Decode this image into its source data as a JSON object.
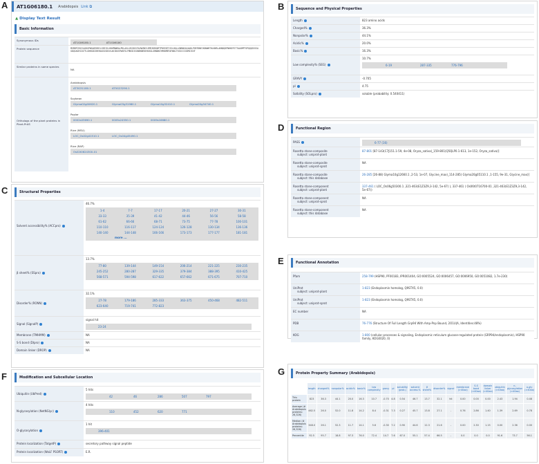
{
  "panels": {
    "a": "A",
    "b": "B",
    "c": "C",
    "d": "D",
    "e": "E",
    "f": "F",
    "g": "G"
  },
  "title": {
    "gene": "AT1G06180.1",
    "species": "Arabidopsis",
    "link": "Link"
  },
  "display_text": "Display Text Result",
  "basic": {
    "heading": "Basic Information",
    "syn_label": "Synonymous IDs",
    "syn": [
      "AT1G06180.1",
      "AT1G06180"
    ],
    "seq_label": "Protein sequence",
    "seq": "MSRRPCEKIGLKKGPWSAEEDRILINYISLHGHPNWRALPKLAGLLRCGKSCRLRWINYLRPDIKRGNFTPHEEDTIISLHQLLGNRWSAIAAKLPGRTDNEIKNVWHTHLKKRLAKNDQSPNHKEFSTTAAGMPTSPQQQSSSSAGDQIAGESIATTLGHHGIDIHEHAGSISDSVLAEIDGSFWSEVLFMDCDISGNEKNEKEHGSGLGRNDKGYMHDMEFAFWDLTSSSCCIGSMSISSF",
    "similar_label": "Similar proteins in same species",
    "similar": "NA",
    "orth_label": "Orthologs of the plant proteins in Plant-PrAS",
    "orth": [
      {
        "sp": "Arabidopsis",
        "ids": [
          "AT3G31180.1",
          "AT5G23290.1"
        ]
      },
      {
        "sp": "Soybean",
        "ids": [
          "Glyma02g00620.1",
          "Glyma03g31980.1",
          "Glyma10g32410.1",
          "Glyma20g34740.1"
        ]
      },
      {
        "sp": "Poplar",
        "ids": [
          "0002s03690.1",
          "0005s24550.1",
          "0009s16680.1"
        ]
      },
      {
        "sp": "Rice (MSU)",
        "ids": [
          "LOC_Os02g41510.1",
          "LOC_Os04g45490.1"
        ]
      },
      {
        "sp": "Rice (RAP)",
        "ids": [
          "Os02t0624300-01"
        ]
      }
    ]
  },
  "seqprops": {
    "heading": "Sequence and Physical Properties",
    "rows": [
      [
        "Length",
        "823 amino acids"
      ],
      [
        "Charged%",
        "36.3%"
      ],
      [
        "Nonpolar%",
        "44.1%"
      ],
      [
        "Acidic%",
        "20.0%"
      ],
      [
        "Basic%",
        "16.3%"
      ]
    ],
    "lc_label": "Low complexity% (SEG)",
    "lc_val": "10.7%",
    "lc_ranges": [
      "6-19",
      "287-335",
      "776-796"
    ],
    "rows2": [
      [
        "GRAVY",
        "-0.705"
      ],
      [
        "pI",
        "4.75"
      ],
      [
        "Solbility (SOLpro)",
        "soluble (probability: 0.540411)"
      ]
    ]
  },
  "structural": {
    "heading": "Structural Properties",
    "acc_label": "Solvent accessibility% (ACCpro)",
    "acc_val": "46.7%",
    "acc": [
      "1-4",
      "7-7",
      "17-17",
      "20-21",
      "27-27",
      "30-31",
      "33-33",
      "35-39",
      "41-42",
      "44-46",
      "56-56",
      "58-58",
      "61-62",
      "66-66",
      "68-71",
      "73-75",
      "77-78",
      "100-101",
      "110-110",
      "116-117",
      "124-124",
      "126-128",
      "130-134",
      "136-136",
      "140-140",
      "144-148",
      "166-166",
      "173-173",
      "177-177",
      "181-181"
    ],
    "more": "more ...",
    "beta_label": "β sheet% (SSpro)",
    "beta_val": "13.7%",
    "beta": [
      "77-80",
      "139-144",
      "149-154",
      "206-214",
      "221-225",
      "230-235",
      "245-252",
      "280-287",
      "329-335",
      "379-384",
      "388-395",
      "410-425",
      "568-571",
      "594-598",
      "617-622",
      "657-662",
      "671-675",
      "707-710"
    ],
    "dis_label": "Disorder% (RONN)",
    "dis_val": "32.1%",
    "dis": [
      "27-78",
      "179-186",
      "285-333",
      "363-375",
      "450-468",
      "482-511",
      "623-640",
      "719-741",
      "772-823"
    ],
    "sig_label": "Signal (SignalP)",
    "sig_val": "signal hit",
    "sig": "23-24",
    "tail": [
      [
        "Membrane (TMHMM)",
        "NA"
      ],
      [
        "S-S bond (DIpro)",
        "NA"
      ],
      [
        "Domain linker (DROP)",
        "NA"
      ]
    ]
  },
  "functional": {
    "heading": "Functional Region",
    "pass_label": "PASS",
    "pass": "6-77 (16)",
    "rows": [
      {
        "k1": "Rosetta stone-composite",
        "k2": "subject: uniprot-plant",
        "link": "87-801",
        "text": " [87-143(C7J151.1-59, 4e-08, Oryza_sativa)_159-801(Q5QLP0.1-613, 1e-152, Oryza_sativa)]"
      },
      {
        "k1": "Rosetta stone-composite",
        "k2": "subject: uniprot-sprot",
        "link": "",
        "text": "NA"
      },
      {
        "k1": "Rosetta stone-composite",
        "k2": "subject: this database",
        "link": "26-285",
        "text": " [26-88( Glyma10g12660.1 ,2-53, 1e-07, Glycine_max)_114-285( Glyma20g05110.1 ,1-155, 9e-31, Glycine_max)]"
      },
      {
        "k1": "Rosetta stone-component",
        "k2": "subject: uniprot-plant",
        "link": "337-461",
        "text": " ( LOC_Os06g50300.1 ,321-463(E1Z3Z9,3-142, 5e-67) ), 337-461 ( Os06t0716700-01 ,321-463(E1Z3Z9,3-142, 5e-67))"
      },
      {
        "k1": "Rosetta stone-component",
        "k2": "subject: uniprot-sprot",
        "link": "",
        "text": "NA"
      },
      {
        "k1": "Rosetta stone-component",
        "k2": "subject: this database",
        "link": "",
        "text": "NA"
      }
    ]
  },
  "annotation": {
    "heading": "Functional Annotation",
    "rows": [
      {
        "k1": "Pfam",
        "k2": "",
        "link": "258-799",
        "text": " (HSP90, PF00183, IPR001404, GO:0005524, GO:0006457, GO:0006950, GO:0051082, 1.7e-230)"
      },
      {
        "k1": "UniProt",
        "k2": "subject: uniprot-plant",
        "link": "1-823",
        "text": " (Endoplasmin homolog, Q9STX5, 0.0)"
      },
      {
        "k1": "UniProt",
        "k2": "subject: uniprot-sprot",
        "link": "1-823",
        "text": " (Endoplasmin homolog, Q9STX5, 0.0)"
      },
      {
        "k1": "EC number",
        "k2": "",
        "link": "",
        "text": "NA"
      },
      {
        "k1": "PDB",
        "k2": "",
        "link": "76-776",
        "text": " (Structure Of Full Length Grp94 With Amp-Pnp Bound, 2O1U|A, Identities:48%)"
      },
      {
        "k1": "KOG",
        "k2": "",
        "link": "1-800",
        "text": " (cellular processes & signaling, Endoplasmic reticulum glucose-regulated protein (GRP94/endoplasmin), HSP90 family, KOG0020, 0)"
      }
    ]
  },
  "modification": {
    "heading": "Modification and Subcellular Location",
    "ub_label": "Ubiquitin (UbPred)",
    "ub_val": "5 hits",
    "ub": [
      "42",
      "46",
      "286",
      "507",
      "797"
    ],
    "ng_label": "N-glycosylation (NetNGlyc)",
    "ng_val": "4 hits",
    "ng": [
      "110",
      "452",
      "620",
      "771"
    ],
    "og_label": "O-glycosylation",
    "og_val": "1 hit",
    "og": "396-401",
    "tail": [
      [
        "Protein localization (TatgetP)",
        "secretory pathway signal peptide"
      ],
      [
        "Protein localization (WoLF PSORT)",
        "E.R."
      ]
    ]
  },
  "summary": {
    "heading": "Protein Property Summary (Arabidopsis)",
    "cols": [
      "length",
      "charged%",
      "nonpolar%",
      "acidic%",
      "basic%",
      "low complexity",
      "gravy",
      "pI",
      "solubility (prob.)",
      "solvent access.%",
      "β sheet%",
      "disorder%",
      "signal",
      "membrane (>40aa)",
      "S-S bond (>40aa)",
      "domain linker (>40aa)",
      "ubiquitin (>40aa)",
      "n-glycosylation (>40aa)",
      "o-gly (>40aa)"
    ],
    "rows": [
      {
        "label": "This protein",
        "vals": [
          "823",
          "36.3",
          "44.1",
          "20.0",
          "16.3",
          "10.7",
          "-0.70",
          "4.8",
          "0.54",
          "46.7",
          "13.7",
          "32.1",
          "hit",
          "0.00",
          "0.00",
          "0.00",
          "2.43",
          "1.94",
          "0.48"
        ]
      },
      {
        "label": "Average (# Arabidopsis proteins: 26,326)",
        "vals": [
          "462.5",
          "26.0",
          "52.0",
          "11.8",
          "14.2",
          "8.4",
          "-0.31",
          "7.3",
          "0.27",
          "45.7",
          "13.8",
          "27.1",
          "-",
          "0.76",
          "2.86",
          "1.40",
          "1.39",
          "2.69",
          "0.78"
        ]
      },
      {
        "label": "Median (# Arabidopsis proteins: 26,326)",
        "vals": [
          "348.0",
          "26.1",
          "52.3",
          "11.7",
          "14.1",
          "5.6",
          "-0.30",
          "7.2",
          "0.90",
          "44.6",
          "12.3",
          "21.6",
          "-",
          "0.00",
          "2.30",
          "1.15",
          "0.00",
          "2.36",
          "0.00"
        ]
      },
      {
        "label": "Percentile",
        "vals": [
          "92.5",
          "95.7",
          "18.8",
          "97.3",
          "76.0",
          "72.4",
          "14.7",
          "7.6",
          "67.0",
          "55.1",
          "57.4",
          "66.5",
          "-",
          "0.0",
          "0.0",
          "0.0",
          "91.6",
          "73.7",
          "56.1"
        ]
      }
    ]
  }
}
